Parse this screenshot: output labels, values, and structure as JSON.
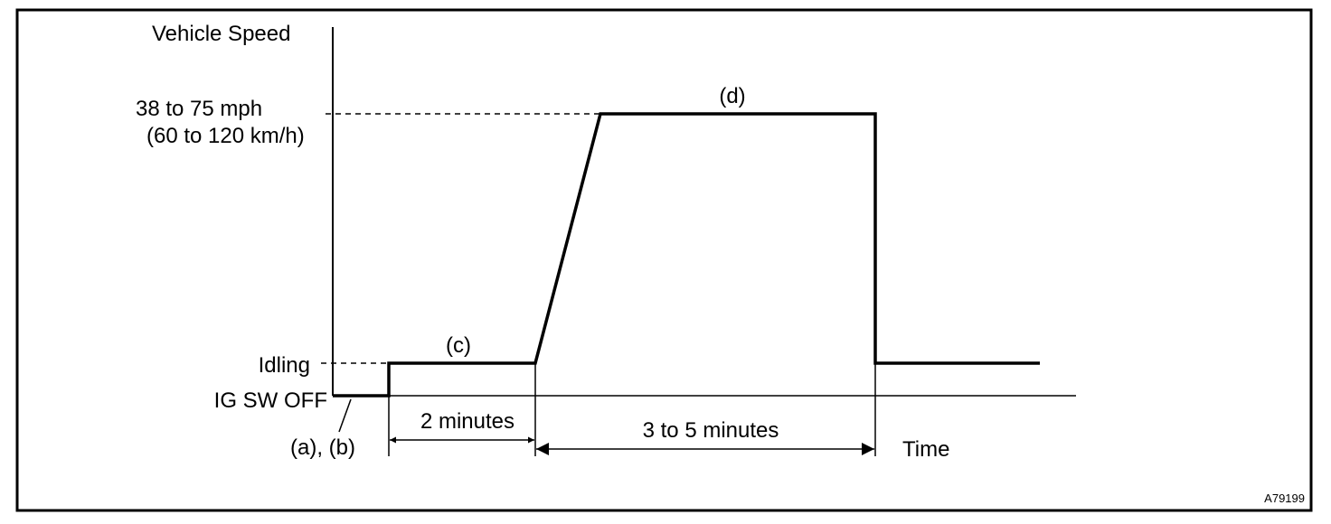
{
  "diagram": {
    "axis_label_y": "Vehicle Speed",
    "axis_label_x": "Time",
    "levels": {
      "high_mph": "38 to 75 mph",
      "high_kmh": "(60 to 120 km/h)",
      "idling": "Idling",
      "off": "IG SW OFF"
    },
    "steps": {
      "ab": "(a), (b)",
      "c": "(c)",
      "d": "(d)"
    },
    "durations": {
      "first": "2 minutes",
      "second": "3 to 5 minutes"
    },
    "figure_id": "A79199"
  }
}
